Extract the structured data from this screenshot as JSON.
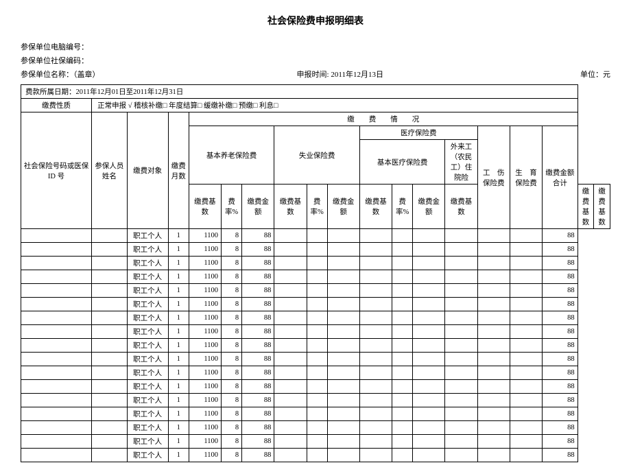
{
  "title": "社会保险费申报明细表",
  "meta": {
    "line1_label": "参保单位电脑编号：",
    "line2_label": "参保单位社保编码：",
    "line3_left": "参保单位名称：（盖章）",
    "line3_mid_label": "申报时间:",
    "line3_mid_value": "2011年12月13日",
    "line3_right": "单位：元"
  },
  "period_row": "费款所属日期：2011年12月01日至2011年12月31日",
  "nature": {
    "label": "缴费性质",
    "options": "正常申报 √  稽核补缴□  年度结算□    缓缴补缴□  预缴□  利息□"
  },
  "headers": {
    "col_ssn": "社会保险号码或医保 ID 号",
    "col_name": "参保人员姓名",
    "col_target": "缴费对象",
    "col_months": "缴费月数",
    "group_situation": "缴　　费　　情　　况",
    "grp_pension": "基本养老保险费",
    "grp_unemp": "失业保险费",
    "grp_medical": "医疗保险费",
    "grp_med_basic": "基本医疗保险费",
    "grp_med_migrant": "外来工（农民工）住院险",
    "col_injury": "工　伤保险费",
    "col_birth": "生　育保险费",
    "col_total": "缴费金额合计",
    "sub_base": "缴费基数",
    "sub_rate": "费率%",
    "sub_amt": "缴费金额"
  },
  "row_template": {
    "target": "职工个人",
    "months": "1",
    "pension_base": "1100",
    "pension_rate": "8",
    "pension_amt": "88",
    "total": "88"
  },
  "row_count": 17,
  "colors": {
    "border": "#000000",
    "bg": "#ffffff",
    "text": "#000000"
  },
  "col_widths_pct": [
    12,
    6,
    7,
    3.5,
    5.5,
    3.5,
    5.5,
    5.5,
    3.5,
    5.5,
    5.5,
    3.5,
    5.5,
    5.5,
    5.5,
    5.5,
    6
  ]
}
